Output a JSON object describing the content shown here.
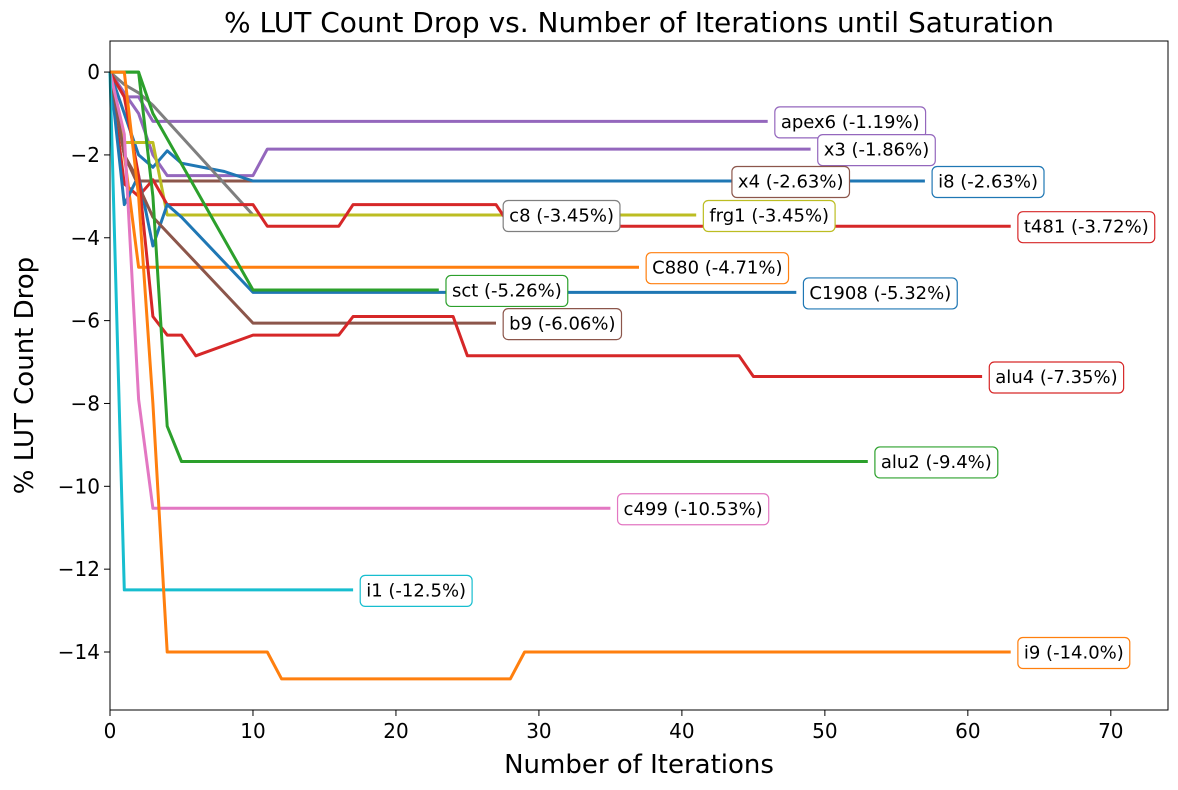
{
  "chart_data": {
    "type": "line",
    "title": "% LUT Count Drop vs. Number of Iterations until Saturation",
    "xlabel": "Number of Iterations",
    "ylabel": "% LUT Count Drop",
    "xlim": [
      0,
      74
    ],
    "ylim": [
      -15.4,
      0.75
    ],
    "xticks": [
      0,
      10,
      20,
      30,
      40,
      50,
      60,
      70
    ],
    "yticks": [
      0,
      -2,
      -4,
      -6,
      -8,
      -10,
      -12,
      -14
    ],
    "xtick_labels": [
      "0",
      "10",
      "20",
      "30",
      "40",
      "50",
      "60",
      "70"
    ],
    "ytick_labels": [
      "0",
      "−2",
      "−4",
      "−6",
      "−8",
      "−10",
      "−12",
      "−14"
    ],
    "grid": false,
    "series": [
      {
        "name": "apex6",
        "color": "#9467bd",
        "points": [
          [
            0,
            0
          ],
          [
            1,
            -0.6
          ],
          [
            2,
            -0.6
          ],
          [
            3,
            -1.19
          ],
          [
            46,
            -1.19
          ]
        ],
        "label": "apex6 (-1.19%)",
        "label_at": [
          46.5,
          -1.19
        ]
      },
      {
        "name": "x3",
        "color": "#9467bd",
        "points": [
          [
            0,
            0
          ],
          [
            2,
            -1.0
          ],
          [
            3,
            -2.0
          ],
          [
            4,
            -2.5
          ],
          [
            10,
            -2.5
          ],
          [
            11,
            -1.86
          ],
          [
            49,
            -1.86
          ]
        ],
        "label": "x3 (-1.86%)",
        "label_at": [
          49.5,
          -1.86
        ]
      },
      {
        "name": "x4",
        "color": "#8c564b",
        "points": [
          [
            0,
            0
          ],
          [
            1,
            -2.0
          ],
          [
            2,
            -2.63
          ],
          [
            43,
            -2.63
          ]
        ],
        "label": "x4 (-2.63%)",
        "label_at": [
          43.5,
          -2.63
        ]
      },
      {
        "name": "i8",
        "color": "#1f77b4",
        "points": [
          [
            0,
            0
          ],
          [
            1,
            -1.0
          ],
          [
            2,
            -2.0
          ],
          [
            3,
            -2.3
          ],
          [
            4,
            -1.9
          ],
          [
            5,
            -2.2
          ],
          [
            8,
            -2.4
          ],
          [
            10,
            -2.63
          ],
          [
            57,
            -2.63
          ]
        ],
        "label": "i8 (-2.63%)",
        "label_at": [
          57.5,
          -2.63
        ]
      },
      {
        "name": "c8",
        "color": "#7f7f7f",
        "points": [
          [
            0,
            0
          ],
          [
            1,
            -0.3
          ],
          [
            2,
            -0.5
          ],
          [
            3,
            -0.8
          ],
          [
            10,
            -3.45
          ],
          [
            27,
            -3.45
          ]
        ],
        "label": "c8 (-3.45%)",
        "label_at": [
          27.5,
          -3.45
        ]
      },
      {
        "name": "frg1",
        "color": "#bcbd22",
        "points": [
          [
            0,
            0
          ],
          [
            1,
            -1.7
          ],
          [
            3,
            -1.7
          ],
          [
            4,
            -3.45
          ],
          [
            41,
            -3.45
          ]
        ],
        "label": "frg1 (-3.45%)",
        "label_at": [
          41.5,
          -3.45
        ]
      },
      {
        "name": "t481",
        "color": "#d62728",
        "points": [
          [
            0,
            0
          ],
          [
            1,
            -2.7
          ],
          [
            2,
            -3.0
          ],
          [
            3,
            -2.6
          ],
          [
            4,
            -3.2
          ],
          [
            10,
            -3.2
          ],
          [
            11,
            -3.72
          ],
          [
            16,
            -3.72
          ],
          [
            17,
            -3.2
          ],
          [
            27,
            -3.2
          ],
          [
            28,
            -3.72
          ],
          [
            63,
            -3.72
          ]
        ],
        "label": "t481 (-3.72%)",
        "label_at": [
          63.5,
          -3.72
        ]
      },
      {
        "name": "C880",
        "color": "#ff7f0e",
        "points": [
          [
            0,
            0
          ],
          [
            1,
            -2.0
          ],
          [
            2,
            -4.71
          ],
          [
            37,
            -4.71
          ]
        ],
        "label": "C880 (-4.71%)",
        "label_at": [
          37.5,
          -4.71
        ]
      },
      {
        "name": "C1908",
        "color": "#1f77b4",
        "points": [
          [
            0,
            0
          ],
          [
            1,
            -3.2
          ],
          [
            2,
            -2.5
          ],
          [
            3,
            -4.2
          ],
          [
            4,
            -3.2
          ],
          [
            5,
            -3.5
          ],
          [
            10,
            -5.32
          ],
          [
            48,
            -5.32
          ]
        ],
        "label": "C1908 (-5.32%)",
        "label_at": [
          48.5,
          -5.32
        ]
      },
      {
        "name": "sct",
        "color": "#2ca02c",
        "points": [
          [
            0,
            0
          ],
          [
            2,
            0
          ],
          [
            3,
            -1.0
          ],
          [
            10,
            -5.26
          ],
          [
            23,
            -5.26
          ]
        ],
        "label": "sct (-5.26%)",
        "label_at": [
          23.5,
          -5.26
        ]
      },
      {
        "name": "b9",
        "color": "#8c564b",
        "points": [
          [
            0,
            0
          ],
          [
            1,
            -2.0
          ],
          [
            3,
            -3.5
          ],
          [
            10,
            -6.06
          ],
          [
            27,
            -6.06
          ]
        ],
        "label": "b9 (-6.06%)",
        "label_at": [
          27.5,
          -6.06
        ]
      },
      {
        "name": "alu4",
        "color": "#d62728",
        "points": [
          [
            0,
            0
          ],
          [
            1,
            -0.6
          ],
          [
            2,
            -2.5
          ],
          [
            3,
            -5.9
          ],
          [
            4,
            -6.35
          ],
          [
            5,
            -6.35
          ],
          [
            6,
            -6.85
          ],
          [
            10,
            -6.35
          ],
          [
            16,
            -6.35
          ],
          [
            17,
            -5.9
          ],
          [
            24,
            -5.9
          ],
          [
            25,
            -6.85
          ],
          [
            44,
            -6.85
          ],
          [
            45,
            -7.35
          ],
          [
            61,
            -7.35
          ]
        ],
        "label": "alu4 (-7.35%)",
        "label_at": [
          61.5,
          -7.35
        ]
      },
      {
        "name": "alu2",
        "color": "#2ca02c",
        "points": [
          [
            0,
            0
          ],
          [
            2,
            0
          ],
          [
            3,
            -3.0
          ],
          [
            4,
            -8.55
          ],
          [
            5,
            -9.4
          ],
          [
            53,
            -9.4
          ]
        ],
        "label": "alu2 (-9.4%)",
        "label_at": [
          53.5,
          -9.4
        ]
      },
      {
        "name": "c499",
        "color": "#e377c2",
        "points": [
          [
            0,
            0
          ],
          [
            1,
            -1.5
          ],
          [
            2,
            -7.9
          ],
          [
            3,
            -10.53
          ],
          [
            35,
            -10.53
          ]
        ],
        "label": "c499 (-10.53%)",
        "label_at": [
          35.5,
          -10.53
        ]
      },
      {
        "name": "i1",
        "color": "#17becf",
        "points": [
          [
            0,
            0
          ],
          [
            1,
            -12.5
          ],
          [
            17,
            -12.5
          ]
        ],
        "label": "i1 (-12.5%)",
        "label_at": [
          17.5,
          -12.5
        ]
      },
      {
        "name": "i9",
        "color": "#ff7f0e",
        "points": [
          [
            0,
            0
          ],
          [
            1,
            0
          ],
          [
            2,
            -3.0
          ],
          [
            3,
            -8.0
          ],
          [
            4,
            -14.0
          ],
          [
            11,
            -14.0
          ],
          [
            12,
            -14.65
          ],
          [
            28,
            -14.65
          ],
          [
            29,
            -14.0
          ],
          [
            63,
            -14.0
          ]
        ],
        "label": "i9 (-14.0%)",
        "label_at": [
          63.5,
          -14.0
        ]
      }
    ]
  }
}
